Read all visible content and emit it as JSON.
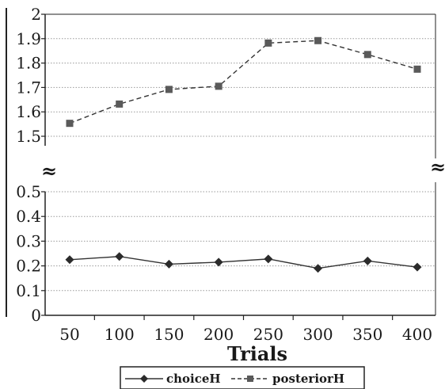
{
  "chart_data": {
    "type": "line",
    "xlabel": "Trials",
    "ylabel": "",
    "title": "",
    "categories": [
      "50",
      "100",
      "150",
      "200",
      "250",
      "300",
      "350",
      "400"
    ],
    "axis_break": {
      "symbol": "≈",
      "lower_range": [
        0,
        0.55
      ],
      "upper_range": [
        1.45,
        2.0
      ]
    },
    "y_ticks": [
      "0",
      "0.1",
      "0.2",
      "0.3",
      "0.4",
      "0.5",
      "1.5",
      "1.6",
      "1.7",
      "1.8",
      "1.9",
      "2"
    ],
    "grid": true,
    "legend": "bottom",
    "series": [
      {
        "name": "choiceH",
        "marker": "diamond",
        "line_style": "solid",
        "color": "#333333",
        "values": [
          0.225,
          0.238,
          0.207,
          0.215,
          0.228,
          0.19,
          0.22,
          0.195
        ]
      },
      {
        "name": "posteriorH",
        "marker": "square",
        "line_style": "dashed",
        "color": "#333333",
        "values": [
          1.553,
          1.632,
          1.692,
          1.705,
          1.882,
          1.892,
          1.835,
          1.775
        ]
      }
    ]
  }
}
